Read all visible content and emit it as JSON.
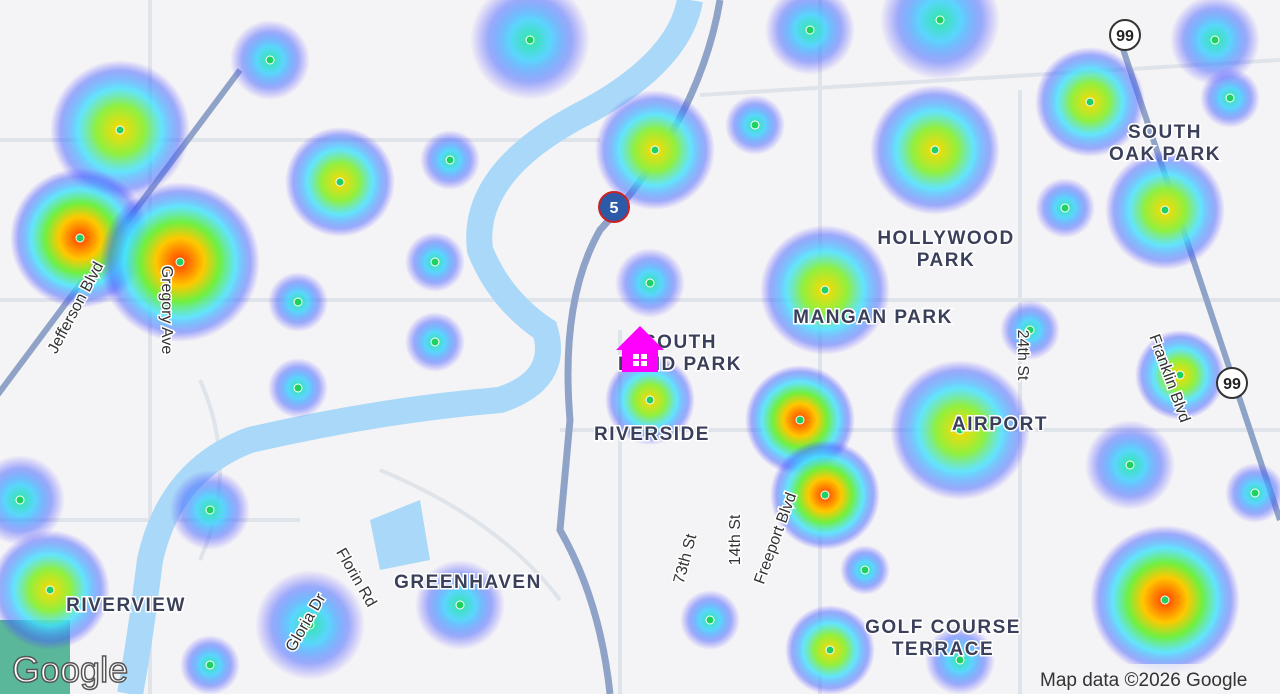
{
  "map": {
    "areas": [
      {
        "lines": [
          "SOUTH",
          "OAK PARK"
        ]
      },
      {
        "lines": [
          "HOLLYWOOD",
          "PARK"
        ]
      },
      {
        "lines": [
          "MANGAN PARK"
        ]
      },
      {
        "lines": [
          "SOUTH",
          "LAND PARK"
        ]
      },
      {
        "lines": [
          "RIVERSIDE"
        ]
      },
      {
        "lines": [
          "AIRPORT"
        ]
      },
      {
        "lines": [
          "GREENHAVEN"
        ]
      },
      {
        "lines": [
          "RIVERVIEW"
        ]
      },
      {
        "lines": [
          "GOLF COURSE",
          "TERRACE"
        ]
      }
    ],
    "streets": [
      "Jefferson Blvd",
      "Gregory Ave",
      "Florin Rd",
      "Gloria Dr",
      "73th St",
      "14th St",
      "Freeport Blvd",
      "24th St",
      "Franklin Blvd"
    ],
    "shields": [
      "99",
      "99",
      "5"
    ],
    "logo": "Google",
    "attribution": "Map data ©2026 Google"
  }
}
